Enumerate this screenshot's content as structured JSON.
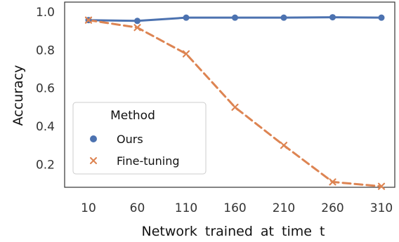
{
  "chart_data": {
    "type": "line",
    "title": "",
    "xlabel": "Network trained at time t",
    "ylabel": "Accuracy",
    "categories": [
      "10",
      "60",
      "110",
      "160",
      "210",
      "260",
      "310"
    ],
    "ylim": [
      0.08,
      1.0
    ],
    "yticks": [
      "0.2",
      "0.4",
      "0.6",
      "0.8",
      "1.0"
    ],
    "ytick_values": [
      0.2,
      0.4,
      0.6,
      0.8,
      1.0
    ],
    "grid": false,
    "legend": {
      "title": "Method",
      "placement": "lower-left"
    },
    "series": [
      {
        "name": "Ours",
        "color": "#4c72b0",
        "style": "solid",
        "marker": "circle",
        "values": [
          0.957,
          0.953,
          0.97,
          0.97,
          0.97,
          0.972,
          0.97
        ]
      },
      {
        "name": "Fine-tuning",
        "color": "#dd8452",
        "style": "dashed",
        "marker": "x",
        "values": [
          0.957,
          0.918,
          0.78,
          0.5,
          0.3,
          0.108,
          0.085
        ]
      }
    ]
  }
}
